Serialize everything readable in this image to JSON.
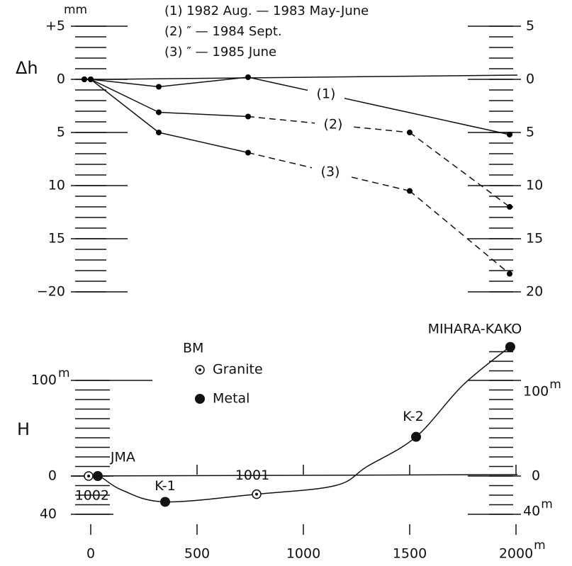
{
  "chart_data": [
    {
      "type": "line",
      "y_label": "Δh",
      "y_unit": "mm",
      "legend": [
        "(1)  1982 Aug. — 1983 May-June",
        "(2)       ″       — 1984 Sept.",
        "(3)       ″       — 1985 June"
      ],
      "x": [
        -30,
        0,
        320,
        740,
        1500,
        1970
      ],
      "series": [
        {
          "name": "(1)",
          "color": "#000000",
          "values": [
            0,
            0,
            0.7,
            -0.2,
            null,
            5.2
          ],
          "dashed_from_index": 5
        },
        {
          "name": "(2)",
          "color": "#000000",
          "values": [
            0,
            0,
            3.1,
            3.5,
            5,
            12
          ],
          "dashed_from_index": 3
        },
        {
          "name": "(3)",
          "color": "#000000",
          "values": [
            0,
            0,
            5,
            6.9,
            10.5,
            18.3
          ],
          "dashed_from_index": 3
        }
      ],
      "xlim": [
        0,
        2000
      ],
      "ylim": [
        -5,
        20
      ],
      "inverted": true,
      "yticks": [
        {
          "value": -5,
          "label": "+5"
        },
        0,
        5,
        10,
        15,
        {
          "value": 20,
          "label": "−20"
        }
      ],
      "y2ticks": [
        {
          "value": -5,
          "label": "5"
        },
        0,
        5,
        10,
        15,
        20
      ],
      "yminor": [
        -5,
        -4,
        -3,
        -2,
        -1,
        0,
        1,
        2,
        3,
        4,
        5,
        6,
        7,
        8,
        9,
        10,
        11,
        12,
        13,
        14,
        15,
        16,
        17,
        18,
        19,
        20
      ]
    },
    {
      "type": "profile",
      "y_label": "H",
      "y_unit": "m",
      "x_unit": "m",
      "legend_title": "BM",
      "legend": [
        "Granite",
        "Metal"
      ],
      "x": [
        0,
        40,
        150,
        350,
        780,
        1150,
        1300,
        1530,
        1750,
        1970
      ],
      "values": [
        0,
        0,
        -15,
        -27,
        -19,
        -10,
        10,
        41,
        95,
        135
      ],
      "benchmarks": {
        "names": [
          "1002",
          "JMA",
          "K-1",
          "1001",
          "K-2",
          "MIHARA-KAKO"
        ],
        "x": [
          -10,
          33,
          350,
          780,
          1530,
          1973
        ],
        "values": [
          0,
          0,
          -27,
          -19,
          41,
          135
        ],
        "kinds": [
          0,
          1,
          1,
          0,
          1,
          1
        ]
      },
      "xlim": [
        0,
        2000
      ],
      "xticks": [
        0,
        500,
        1000,
        1500,
        2000
      ],
      "ylim": [
        -50,
        140
      ],
      "yticks": [
        100,
        0,
        {
          "value": -40,
          "label": "40"
        }
      ],
      "y2ticks": [
        100,
        0,
        {
          "value": -40,
          "label": "40"
        }
      ],
      "yminor": [
        -40,
        -30,
        -20,
        -10,
        0,
        10,
        20,
        30,
        40,
        50,
        60,
        70,
        80,
        90,
        100,
        110,
        120,
        130
      ]
    }
  ]
}
